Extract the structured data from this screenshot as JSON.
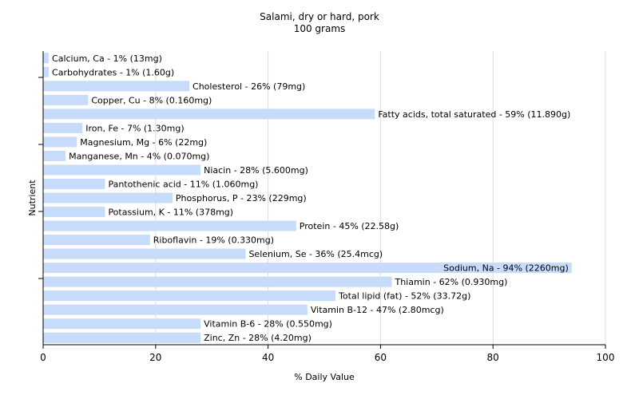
{
  "chart_data": {
    "type": "bar",
    "orientation": "horizontal",
    "title": "Salami, dry or hard, pork",
    "subtitle": "100 grams",
    "xlabel": "% Daily Value",
    "ylabel": "Nutrient",
    "xlim": [
      0,
      100
    ],
    "xticks": [
      0,
      20,
      40,
      60,
      80,
      100
    ],
    "grid": true,
    "bar_color": "#c6dcfa",
    "grid_color": "#dcdcdc",
    "categories": [
      "Calcium, Ca",
      "Carbohydrates",
      "Cholesterol",
      "Copper, Cu",
      "Fatty acids, total saturated",
      "Iron, Fe",
      "Magnesium, Mg",
      "Manganese, Mn",
      "Niacin",
      "Pantothenic acid",
      "Phosphorus, P",
      "Potassium, K",
      "Protein",
      "Riboflavin",
      "Selenium, Se",
      "Sodium, Na",
      "Thiamin",
      "Total lipid (fat)",
      "Vitamin B-12",
      "Vitamin B-6",
      "Zinc, Zn"
    ],
    "values": [
      1,
      1,
      26,
      8,
      59,
      7,
      6,
      4,
      28,
      11,
      23,
      11,
      45,
      19,
      36,
      94,
      62,
      52,
      47,
      28,
      28
    ],
    "labels": [
      "Calcium, Ca - 1% (13mg)",
      "Carbohydrates - 1% (1.60g)",
      "Cholesterol - 26% (79mg)",
      "Copper, Cu - 8% (0.160mg)",
      "Fatty acids, total saturated - 59% (11.890g)",
      "Iron, Fe - 7% (1.30mg)",
      "Magnesium, Mg - 6% (22mg)",
      "Manganese, Mn - 4% (0.070mg)",
      "Niacin - 28% (5.600mg)",
      "Pantothenic acid - 11% (1.060mg)",
      "Phosphorus, P - 23% (229mg)",
      "Potassium, K - 11% (378mg)",
      "Protein - 45% (22.58g)",
      "Riboflavin - 19% (0.330mg)",
      "Selenium, Se - 36% (25.4mcg)",
      "Sodium, Na - 94% (2260mg)",
      "Thiamin - 62% (0.930mg)",
      "Total lipid (fat) - 52% (33.72g)",
      "Vitamin B-12 - 47% (2.80mcg)",
      "Vitamin B-6 - 28% (0.550mg)",
      "Zinc, Zn - 28% (4.20mg)"
    ]
  }
}
